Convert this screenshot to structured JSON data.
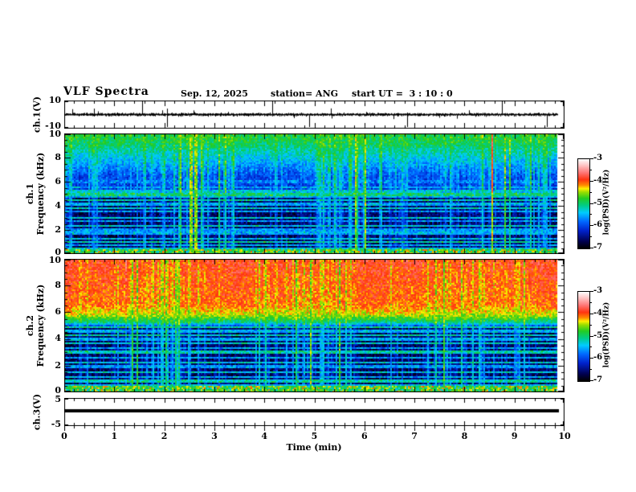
{
  "title": "VLF Spectra",
  "header": {
    "date": "Sep. 12, 2025",
    "station": "station= ANG",
    "start_ut": "start UT =  3 : 10 : 0"
  },
  "xaxis": {
    "label": "Time (min)",
    "tick_labels": [
      "0",
      "1",
      "2",
      "3",
      "4",
      "5",
      "6",
      "7",
      "8",
      "9",
      "10"
    ],
    "range_min": [
      0,
      10
    ],
    "minor_step_min": 0.2,
    "data_end_min": 9.87
  },
  "colorbar": {
    "label": "log(PSD)(V²/Hz)",
    "tick_labels": [
      "-3",
      "-4",
      "-5",
      "-6",
      "-7"
    ],
    "range": [
      -7,
      -3
    ],
    "gradient_bottom_to_top": [
      {
        "t": 0.0,
        "c": "#000000"
      },
      {
        "t": 0.08,
        "c": "#000050"
      },
      {
        "t": 0.2,
        "c": "#0022cc"
      },
      {
        "t": 0.3,
        "c": "#0066ff"
      },
      {
        "t": 0.4,
        "c": "#00ccff"
      },
      {
        "t": 0.48,
        "c": "#00cc88"
      },
      {
        "t": 0.56,
        "c": "#22cc22"
      },
      {
        "t": 0.63,
        "c": "#99dd00"
      },
      {
        "t": 0.67,
        "c": "#ffee00"
      },
      {
        "t": 0.71,
        "c": "#ff8800"
      },
      {
        "t": 0.77,
        "c": "#ff3311"
      },
      {
        "t": 0.85,
        "c": "#ff7777"
      },
      {
        "t": 0.93,
        "c": "#ffc4c4"
      },
      {
        "t": 1.0,
        "c": "#ffffff"
      }
    ]
  },
  "chart_data": [
    {
      "type": "line",
      "name": "ch1-waveform",
      "ylabel": "ch.1(V)",
      "ylim": [
        -10,
        10
      ],
      "ytick_labels": [
        "10",
        "-10"
      ],
      "description": "Broadband noise around 0 V (~±1 V) with impulsive spikes reaching full scale",
      "noise_sigma_v": 0.7,
      "spikes_up_min": [
        1.55,
        4.15,
        8.75
      ],
      "spikes_down_min": [
        2.05,
        4.9,
        6.85,
        9.65
      ],
      "color": "#000000",
      "seed": 11
    },
    {
      "type": "heatmap",
      "name": "ch1-spectrogram",
      "ylabel_line1": "ch.1",
      "ylabel_line2": "Frequency (kHz)",
      "ylim_khz": [
        0,
        10
      ],
      "ytick_labels": [
        "10",
        "8",
        "6",
        "4",
        "2",
        "0"
      ],
      "zlim": [
        -7,
        -3
      ],
      "bg_profile_khz_level": [
        [
          0,
          -6.75
        ],
        [
          4.9,
          -6.75
        ],
        [
          5.05,
          -6.2
        ],
        [
          6.5,
          -6.05
        ],
        [
          8,
          -5.45
        ],
        [
          9.3,
          -4.95
        ],
        [
          10,
          -4.85
        ]
      ],
      "streak_level": -4.55,
      "hot_streak_level": -3.75,
      "hot_prob": 0.012,
      "line_freqs_khz_level": [
        [
          6.0,
          -5.7
        ],
        [
          5.5,
          -5.55
        ],
        [
          5.2,
          -5.35
        ],
        [
          4.95,
          -5.0
        ],
        [
          4.7,
          -5.45
        ],
        [
          4.45,
          -5.2
        ],
        [
          4.15,
          -5.5
        ],
        [
          3.8,
          -5.3
        ],
        [
          3.5,
          -5.6
        ],
        [
          3.0,
          -5.35
        ],
        [
          2.75,
          -5.65
        ],
        [
          2.3,
          -5.3
        ],
        [
          2.0,
          -5.6
        ],
        [
          1.75,
          -5.5
        ],
        [
          1.3,
          -5.4
        ],
        [
          1.0,
          -5.15
        ],
        [
          0.7,
          -5.5
        ],
        [
          0.45,
          -5.3
        ]
      ],
      "bottom_band_khz": 0.35,
      "seed": 21
    },
    {
      "type": "heatmap",
      "name": "ch2-spectrogram",
      "ylabel_line1": "ch.2",
      "ylabel_line2": "Frequency (kHz)",
      "ylim_khz": [
        0,
        10
      ],
      "ytick_labels": [
        "10",
        "8",
        "6",
        "4",
        "2",
        "0"
      ],
      "zlim": [
        -7,
        -3
      ],
      "bg_profile_khz_level": [
        [
          0,
          -6.75
        ],
        [
          4.8,
          -6.75
        ],
        [
          5.2,
          -5.2
        ],
        [
          5.8,
          -4.4
        ],
        [
          6.5,
          -4.0
        ],
        [
          10,
          -3.8
        ]
      ],
      "streak_level": -4.6,
      "hot_streak_level": -3.4,
      "hot_prob": 0.008,
      "line_freqs_khz_level": [
        [
          4.9,
          -5.1
        ],
        [
          4.6,
          -5.45
        ],
        [
          4.3,
          -5.2
        ],
        [
          4.0,
          -5.5
        ],
        [
          3.7,
          -5.3
        ],
        [
          3.3,
          -5.55
        ],
        [
          3.0,
          -5.2
        ],
        [
          2.6,
          -5.5
        ],
        [
          2.25,
          -5.3
        ],
        [
          1.9,
          -5.6
        ],
        [
          1.5,
          -5.3
        ],
        [
          1.15,
          -5.5
        ],
        [
          0.85,
          -5.2
        ],
        [
          0.5,
          -5.4
        ]
      ],
      "bottom_band_khz": 0.45,
      "seed": 31
    },
    {
      "type": "line",
      "name": "ch3-waveform",
      "ylabel": "ch.3(V)",
      "ylim": [
        -5,
        5
      ],
      "ytick_labels": [
        "5",
        "-5"
      ],
      "description": "Constant flat trace",
      "value_v": 0.5,
      "line_thickness_px": 4,
      "color": "#000000"
    }
  ]
}
